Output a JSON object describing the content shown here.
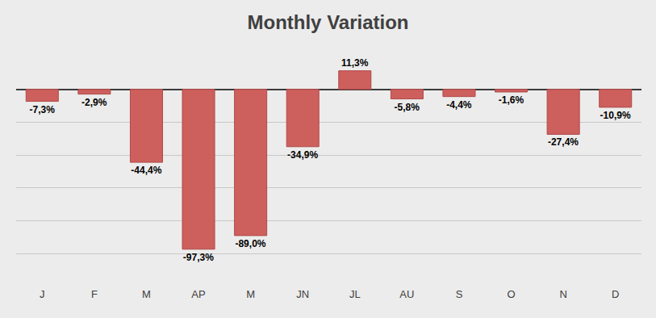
{
  "chart_data": {
    "type": "bar",
    "title": "Monthly Variation",
    "categories": [
      "J",
      "F",
      "M",
      "AP",
      "M",
      "JN",
      "JL",
      "AU",
      "S",
      "O",
      "N",
      "D"
    ],
    "values": [
      -7.3,
      -2.9,
      -44.4,
      -97.3,
      -89.0,
      -34.9,
      11.3,
      -5.8,
      -4.4,
      -1.6,
      -27.4,
      -10.9
    ],
    "value_labels": [
      "-7,3%",
      "-2,9%",
      "-44,4%",
      "-97,3%",
      "-89,0%",
      "-34,9%",
      "11,3%",
      "-5,8%",
      "-4,4%",
      "-1,6%",
      "-27,4%",
      "-10,9%"
    ],
    "color": "#cd5f5d",
    "ylim": [
      -120,
      20
    ],
    "yticks": [
      -120,
      -100,
      -80,
      -60,
      -40,
      -20,
      0,
      20
    ],
    "grid": true,
    "data_labels": true,
    "tick_labels": "x"
  }
}
